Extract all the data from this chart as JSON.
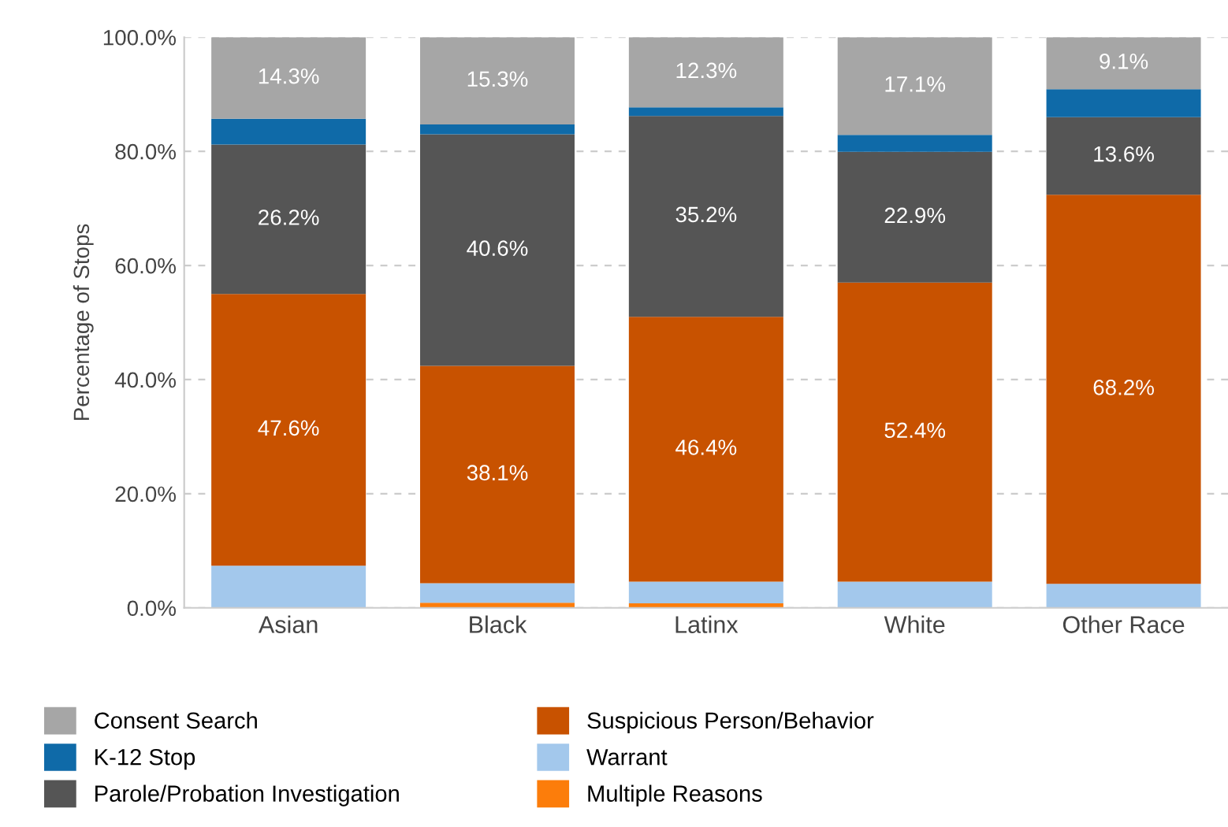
{
  "chart_data": {
    "type": "bar",
    "stacked": true,
    "ylabel": "Percentage of Stops",
    "categories": [
      "Asian",
      "Black",
      "Latinx",
      "White",
      "Other Race"
    ],
    "series": [
      {
        "name": "Multiple Reasons",
        "color": "#fc7d0b",
        "values": [
          0,
          0.9,
          0.8,
          0,
          0
        ],
        "value_labels": [
          null,
          null,
          null,
          null,
          null
        ]
      },
      {
        "name": "Warrant",
        "color": "#a3c8ec",
        "values": [
          7.4,
          3.4,
          3.8,
          4.6,
          4.2
        ],
        "value_labels": [
          null,
          null,
          null,
          null,
          null
        ]
      },
      {
        "name": "Suspicious Person/Behavior",
        "color": "#c85200",
        "values": [
          47.6,
          38.1,
          46.4,
          52.4,
          68.2
        ],
        "value_labels": [
          "47.6%",
          "38.1%",
          "46.4%",
          "52.4%",
          "68.2%"
        ]
      },
      {
        "name": "Parole/Probation Investigation",
        "color": "#555555",
        "values": [
          26.2,
          40.6,
          35.2,
          22.9,
          13.6
        ],
        "value_labels": [
          "26.2%",
          "40.6%",
          "35.2%",
          "22.9%",
          "13.6%"
        ]
      },
      {
        "name": "K-12 Stop",
        "color": "#0f6aa8",
        "values": [
          4.5,
          1.7,
          1.5,
          3.0,
          4.9
        ],
        "value_labels": [
          null,
          null,
          null,
          null,
          null
        ]
      },
      {
        "name": "Consent Search",
        "color": "#a6a6a6",
        "values": [
          14.3,
          15.3,
          12.3,
          17.1,
          9.1
        ],
        "value_labels": [
          "14.3%",
          "15.3%",
          "12.3%",
          "17.1%",
          "9.1%"
        ]
      }
    ],
    "ylim": [
      0,
      100
    ],
    "yticks": [
      {
        "value": 0,
        "label": "0.0%"
      },
      {
        "value": 20,
        "label": "20.0%"
      },
      {
        "value": 40,
        "label": "40.0%"
      },
      {
        "value": 60,
        "label": "60.0%"
      },
      {
        "value": 80,
        "label": "80.0%"
      },
      {
        "value": 100,
        "label": "100.0%"
      }
    ],
    "grid": "y",
    "legend": "bottom"
  }
}
